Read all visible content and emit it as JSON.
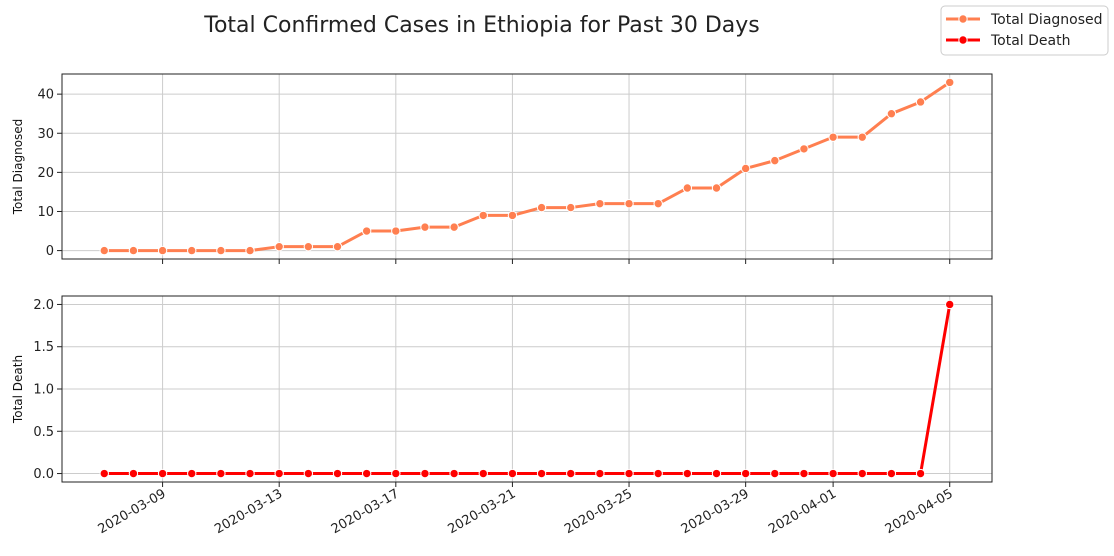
{
  "chart_data": {
    "type": "line",
    "title": "Total Confirmed Cases in Ethiopia for Past 30 Days",
    "x": [
      "2020-03-07",
      "2020-03-08",
      "2020-03-09",
      "2020-03-10",
      "2020-03-11",
      "2020-03-12",
      "2020-03-13",
      "2020-03-14",
      "2020-03-15",
      "2020-03-16",
      "2020-03-17",
      "2020-03-18",
      "2020-03-19",
      "2020-03-20",
      "2020-03-21",
      "2020-03-22",
      "2020-03-23",
      "2020-03-24",
      "2020-03-25",
      "2020-03-26",
      "2020-03-27",
      "2020-03-28",
      "2020-03-29",
      "2020-03-30",
      "2020-03-31",
      "2020-04-01",
      "2020-04-02",
      "2020-04-03",
      "2020-04-04",
      "2020-04-05"
    ],
    "x_ticks": [
      "2020-03-09",
      "2020-03-13",
      "2020-03-17",
      "2020-03-21",
      "2020-03-25",
      "2020-03-29",
      "2020-04-01",
      "2020-04-05"
    ],
    "legend_placement": "top-right",
    "grid": true,
    "panels": [
      {
        "ylabel": "Total Diagnosed",
        "ylim": [
          -2.15,
          45.15
        ],
        "yticks": [
          0,
          10,
          20,
          30,
          40
        ],
        "ytick_labels": [
          "0",
          "10",
          "20",
          "30",
          "40"
        ],
        "series": {
          "name": "Total Diagnosed",
          "color": "#ff7f50",
          "values": [
            0,
            0,
            0,
            0,
            0,
            0,
            1,
            1,
            1,
            5,
            5,
            6,
            6,
            9,
            9,
            11,
            11,
            12,
            12,
            12,
            16,
            16,
            21,
            23,
            26,
            29,
            29,
            35,
            38,
            43
          ]
        }
      },
      {
        "ylabel": "Total Death",
        "ylim": [
          -0.1,
          2.1
        ],
        "yticks": [
          0,
          0.5,
          1,
          1.5,
          2
        ],
        "ytick_labels": [
          "0.0",
          "0.5",
          "1.0",
          "1.5",
          "2.0"
        ],
        "series": {
          "name": "Total Death",
          "color": "#ff0000",
          "values": [
            0,
            0,
            0,
            0,
            0,
            0,
            0,
            0,
            0,
            0,
            0,
            0,
            0,
            0,
            0,
            0,
            0,
            0,
            0,
            0,
            0,
            0,
            0,
            0,
            0,
            0,
            0,
            0,
            0,
            2
          ]
        }
      }
    ]
  }
}
